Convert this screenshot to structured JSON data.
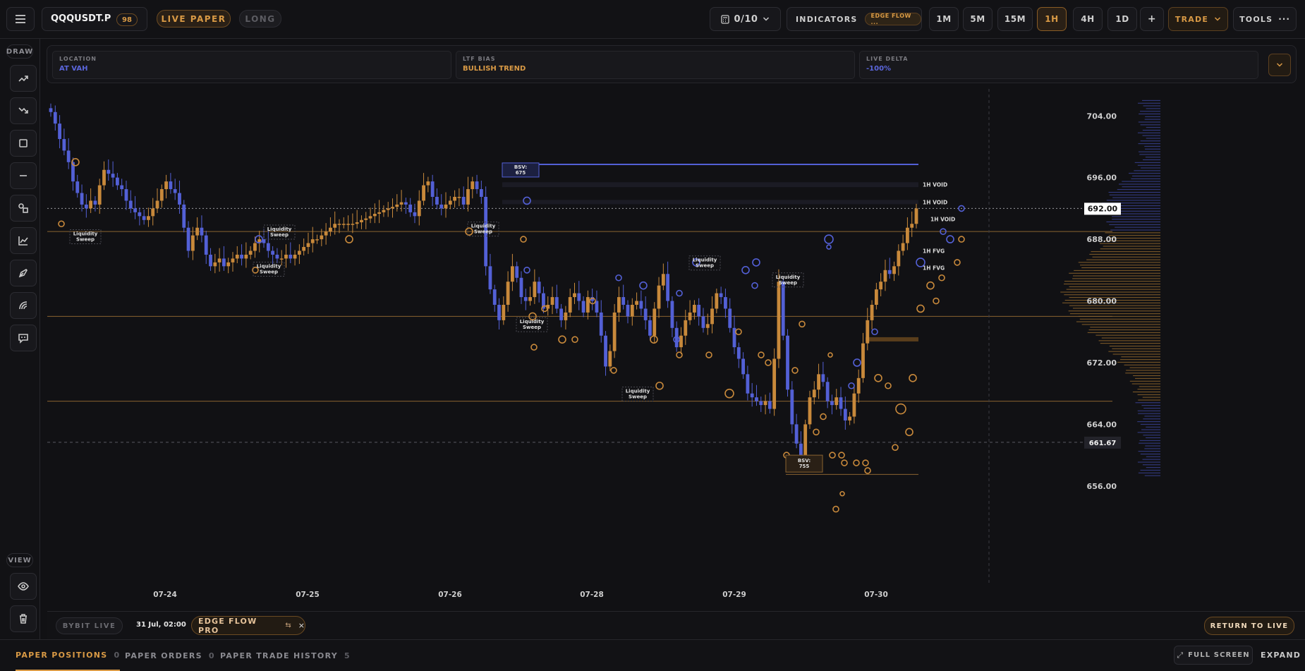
{
  "header": {
    "symbol": "QQQUSDT.P",
    "symbol_badge": "98",
    "mode_live": "LIVE PAPER",
    "mode_long": "LONG",
    "slots": "0/10",
    "indicators_label": "INDICATORS",
    "indicator_chip": "EDGE FLOW ...",
    "timeframes": [
      "1M",
      "5M",
      "15M",
      "1H",
      "4H",
      "1D"
    ],
    "active_timeframe": "1H",
    "add_label": "+",
    "trade_label": "TRADE",
    "tools_label": "TOOLS"
  },
  "sidebar": {
    "draw_label": "DRAW",
    "view_label": "VIEW",
    "tools": [
      "trend-up-icon",
      "trend-down-icon",
      "rectangle-icon",
      "horizontal-line-icon",
      "shapes-icon",
      "chart-icon",
      "pen-icon",
      "fib-icon",
      "comment-icon"
    ]
  },
  "info": {
    "location_key": "LOCATION",
    "location_value": "AT VAH",
    "bias_key": "LTF BIAS",
    "bias_value": "BULLISH TREND",
    "delta_key": "LIVE DELTA",
    "delta_value": "-100%"
  },
  "chart_data": {
    "type": "candlestick",
    "x_labels": [
      "07-24",
      "07-25",
      "07-26",
      "07-28",
      "07-29",
      "07-30"
    ],
    "y_ticks": [
      704,
      696,
      688,
      680,
      672,
      664,
      656
    ],
    "ylim": [
      651.5,
      707.5
    ],
    "current_price": "692.00",
    "crosshair_price": "661.67",
    "closes": [
      704.5,
      703,
      701,
      699.5,
      698,
      695.5,
      694,
      692.5,
      692,
      693,
      692.5,
      695,
      697,
      696.5,
      696,
      695,
      694.5,
      693,
      692,
      691.5,
      691,
      690.5,
      691,
      692,
      693,
      694.5,
      695.5,
      694.5,
      694,
      692.5,
      689.5,
      686.5,
      688.5,
      689.5,
      688.5,
      686,
      684.5,
      685,
      685.5,
      684.5,
      685,
      685.5,
      686,
      685.5,
      686,
      686.5,
      687.5,
      688,
      687.5,
      686.5,
      686,
      685.5,
      685.5,
      686,
      685.5,
      686,
      686.5,
      687,
      687.5,
      688,
      688,
      688.5,
      689,
      689.5,
      690,
      690,
      690,
      690,
      690,
      690.2,
      690.5,
      690.7,
      691,
      691.3,
      691.5,
      691.8,
      692,
      692.2,
      692.5,
      692.8,
      692.5,
      691.5,
      691,
      693,
      695,
      695.5,
      693.5,
      692.5,
      692,
      692.5,
      693,
      693.5,
      693.5,
      692.5,
      694.5,
      695.5,
      694.5,
      693.5,
      684.5,
      681.5,
      679.5,
      677.5,
      679.5,
      682.5,
      684.5,
      683,
      680.5,
      680,
      680.5,
      682.5,
      681,
      679,
      679.5,
      680.5,
      679,
      677.5,
      678.5,
      680.5,
      681,
      680,
      678.5,
      680.5,
      680,
      678.5,
      675.5,
      671.5,
      673.5,
      678.5,
      680.5,
      679.5,
      678,
      679.5,
      680,
      679,
      677.5,
      675.5,
      679,
      682,
      683.5,
      680,
      676.5,
      674,
      675.5,
      677.5,
      678.5,
      679.5,
      678,
      676.5,
      677,
      679,
      681,
      680.5,
      679,
      676.5,
      674,
      672.5,
      670.5,
      668,
      667.5,
      667,
      666.5,
      667,
      666,
      672.5,
      682.5,
      675.5,
      668.5,
      664,
      661.5,
      660,
      664,
      667.5,
      668.5,
      670.5,
      669.5,
      667,
      666.5,
      667.5,
      666,
      664.5,
      665,
      668,
      670,
      674.5,
      677.5,
      679.5,
      681.5,
      682.5,
      684,
      683.5,
      684.5,
      686.5,
      687.5,
      689.5,
      690,
      692
    ],
    "series_colors": {
      "up": "#c8893b",
      "down": "#5360d6"
    },
    "level_lines": [
      689,
      678,
      667
    ],
    "annotations": [
      {
        "label": "1H VOID",
        "price": 695.1
      },
      {
        "label": "1H VOID",
        "price": 692.8
      },
      {
        "label": "1H VOID",
        "price": 690.6
      },
      {
        "label": "1H FVG",
        "price": 686.5
      },
      {
        "label": "1H FVG",
        "price": 684.3
      }
    ],
    "bsv": [
      {
        "label": "BSV:",
        "value": "675"
      },
      {
        "label": "BSV:",
        "value": "755"
      }
    ],
    "sweep_label": [
      "Liquidity",
      "Sweep"
    ]
  },
  "status": {
    "exchange": "BYBIT LIVE",
    "datetime": "31 Jul, 02:00",
    "indicator": "EDGE FLOW PRO",
    "return_label": "RETURN TO LIVE"
  },
  "bottom": {
    "tabs": [
      {
        "label": "PAPER POSITIONS",
        "count": "0"
      },
      {
        "label": "PAPER ORDERS",
        "count": "0"
      },
      {
        "label": "PAPER TRADE HISTORY",
        "count": "5"
      }
    ],
    "fullscreen_label": "FULL SCREEN",
    "expand_label": "EXPAND"
  },
  "colors": {
    "accent": "#d99a45",
    "blue": "#5360d6",
    "background": "#111114"
  }
}
